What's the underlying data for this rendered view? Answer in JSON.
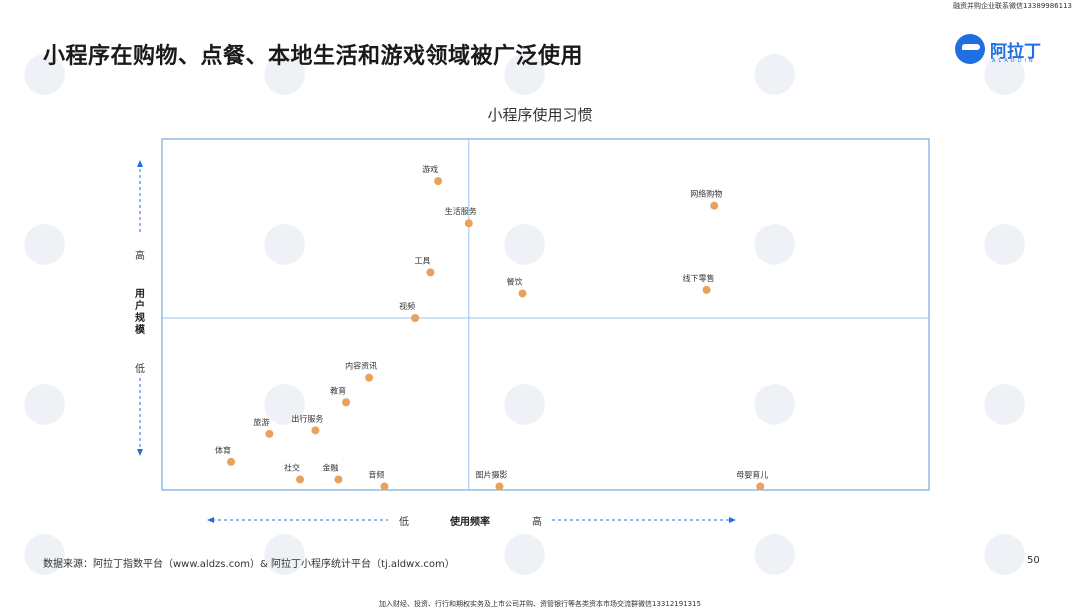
{
  "header": {
    "top_note": "融资并购企业联系微信13389986113",
    "title": "小程序在购物、点餐、本地生活和游戏领域被广泛使用",
    "logo_text": "阿拉丁",
    "logo_sub": "ALADDIN",
    "logo_icon": "aladdin-logo-icon",
    "brand_color": "#1f6fe0"
  },
  "chart_data": {
    "type": "scatter",
    "title": "小程序使用习惯",
    "xlabel": "使用频率",
    "ylabel": "用户规模",
    "x_low": "低",
    "x_high": "高",
    "y_high": "高",
    "y_low": "低",
    "xlim": [
      0,
      100
    ],
    "ylim": [
      0,
      100
    ],
    "quadrant_lines": {
      "x": 40,
      "y": 49
    },
    "point_color": "#e9a15c",
    "axis_color": "#5b9bd5",
    "points": [
      {
        "label": "游戏",
        "x": 36,
        "y": 88
      },
      {
        "label": "生活服务",
        "x": 40,
        "y": 76
      },
      {
        "label": "网络购物",
        "x": 72,
        "y": 81
      },
      {
        "label": "工具",
        "x": 35,
        "y": 62
      },
      {
        "label": "线下零售",
        "x": 71,
        "y": 57
      },
      {
        "label": "餐饮",
        "x": 47,
        "y": 56
      },
      {
        "label": "视频",
        "x": 33,
        "y": 49
      },
      {
        "label": "内容资讯",
        "x": 27,
        "y": 32
      },
      {
        "label": "教育",
        "x": 24,
        "y": 25
      },
      {
        "label": "旅游",
        "x": 14,
        "y": 16
      },
      {
        "label": "出行服务",
        "x": 20,
        "y": 17
      },
      {
        "label": "体育",
        "x": 9,
        "y": 8
      },
      {
        "label": "社交",
        "x": 18,
        "y": 3
      },
      {
        "label": "金融",
        "x": 23,
        "y": 3
      },
      {
        "label": "音频",
        "x": 29,
        "y": 1
      },
      {
        "label": "图片摄影",
        "x": 44,
        "y": 1
      },
      {
        "label": "母婴育儿",
        "x": 78,
        "y": 1
      }
    ]
  },
  "footer": {
    "source": "数据来源：阿拉丁指数平台（www.aldzs.com）& 阿拉丁小程序统计平台（tj.aldwx.com）",
    "page": "50",
    "bottom_note": "加入财经、投资、行行和期权实务及上市公司并购、资管银行等各类资本市场交流群微信13312191315"
  }
}
